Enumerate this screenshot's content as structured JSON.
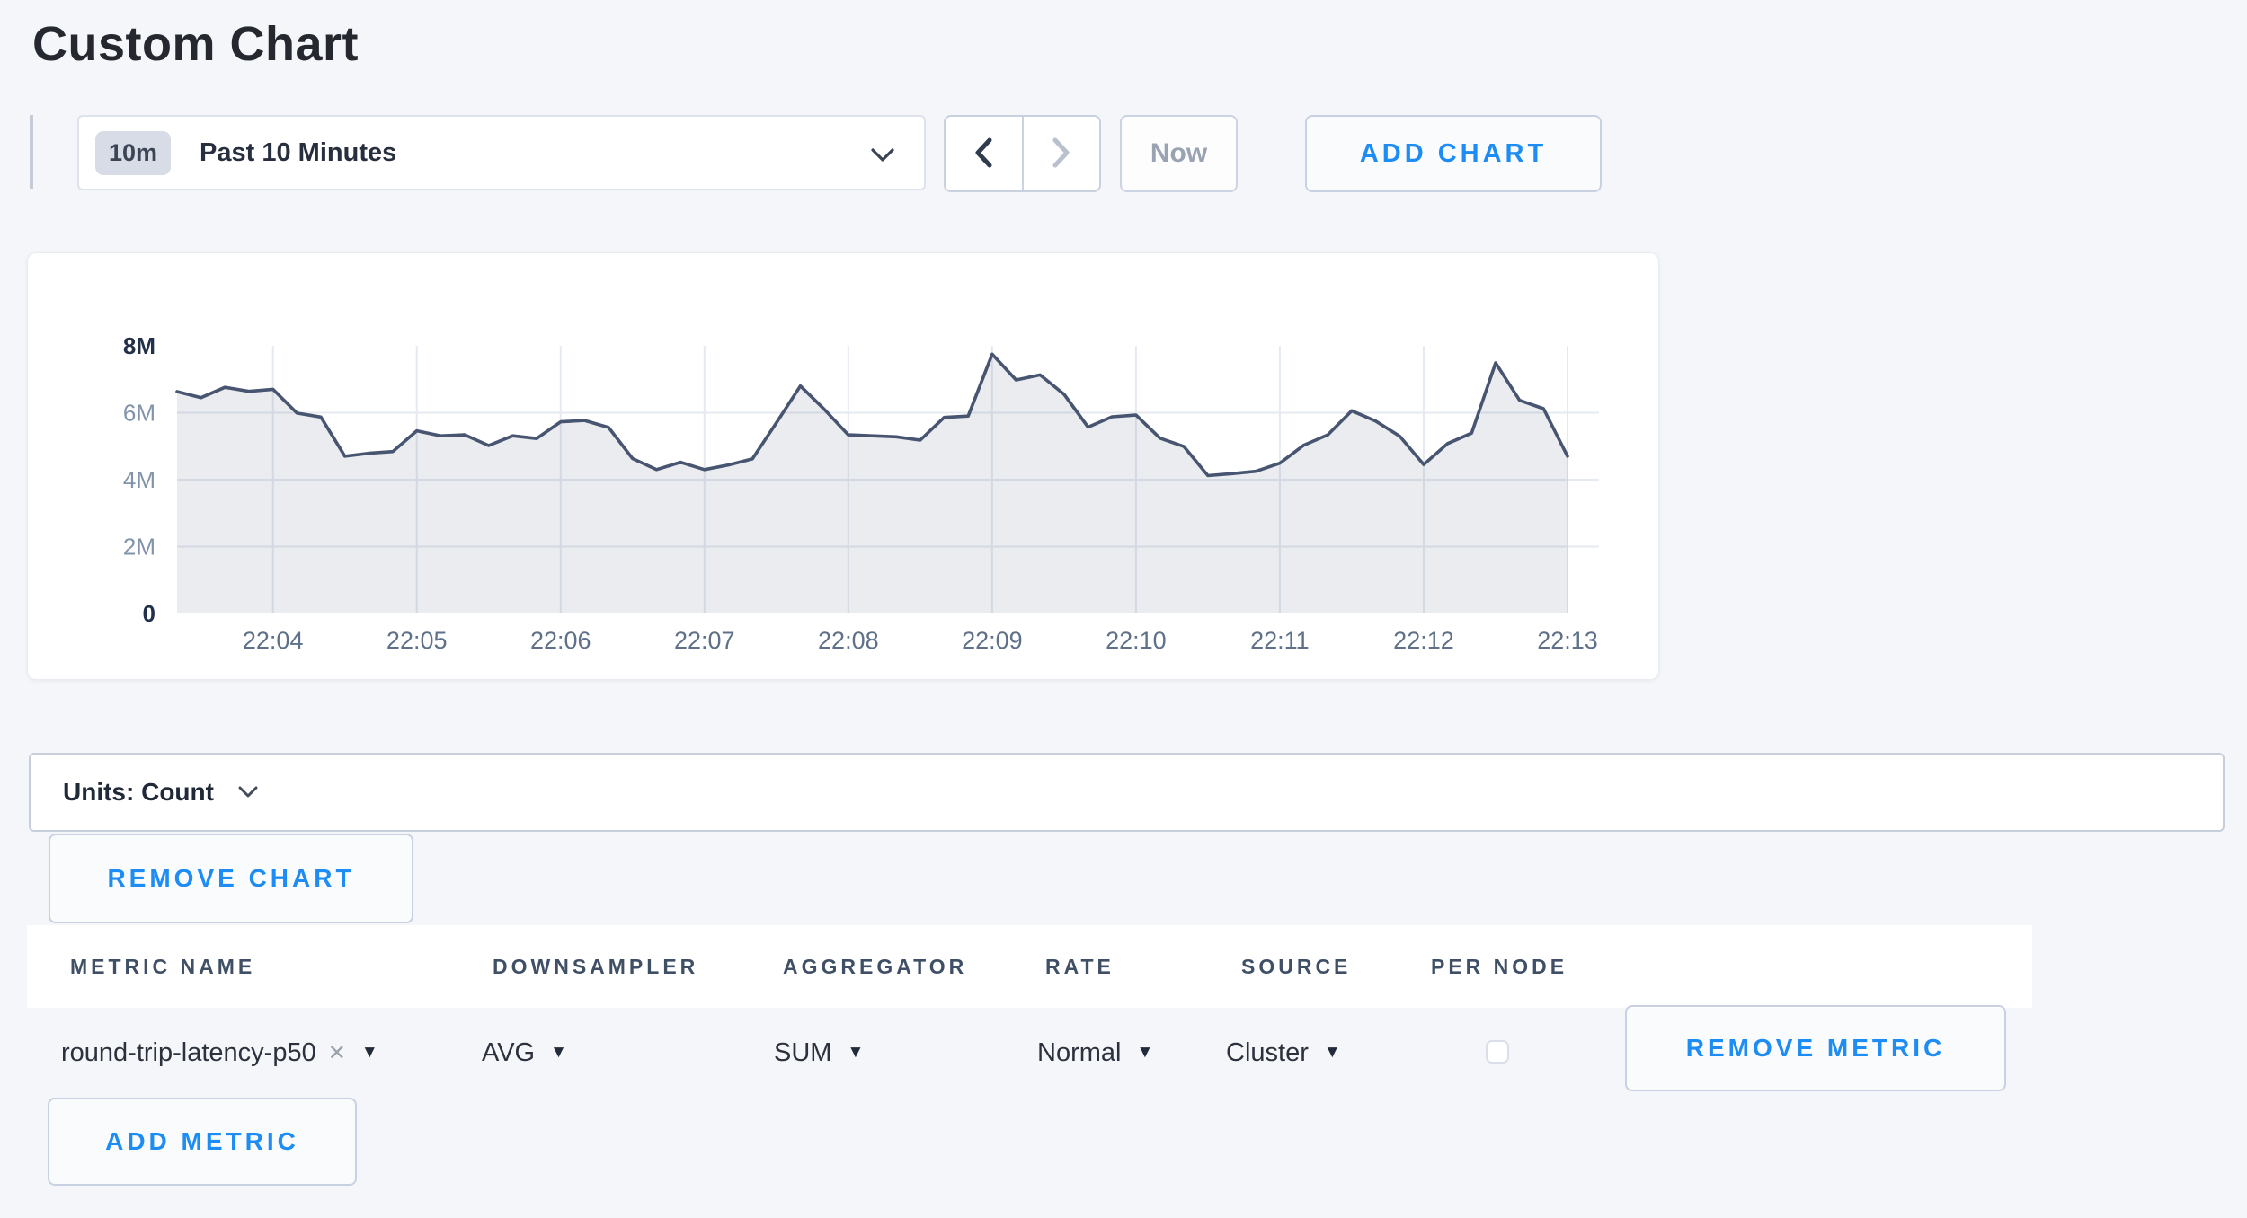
{
  "header": {
    "title": "Custom Chart"
  },
  "toolbar": {
    "range_badge": "10m",
    "range_label": "Past 10 Minutes",
    "now_label": "Now",
    "add_chart_label": "ADD CHART"
  },
  "units": {
    "label": "Units: Count"
  },
  "buttons": {
    "remove_chart": "REMOVE CHART",
    "remove_metric": "REMOVE METRIC",
    "add_metric": "ADD METRIC"
  },
  "icons": {
    "caret_down": "▼",
    "remove_x": "✕"
  },
  "table": {
    "columns": [
      "METRIC NAME",
      "DOWNSAMPLER",
      "AGGREGATOR",
      "RATE",
      "SOURCE",
      "PER NODE"
    ],
    "row": {
      "metric_name": "round-trip-latency-p50",
      "downsampler": "AVG",
      "aggregator": "SUM",
      "rate": "Normal",
      "source": "Cluster",
      "per_node_checked": false
    }
  },
  "colors": {
    "accent_blue": "#1d8cf4",
    "line": "#475571",
    "fill": "rgba(71,84,112,0.11)",
    "grid": "#e5eaf1"
  },
  "chart_data": {
    "type": "area",
    "title": "",
    "ylabel": "Count",
    "unit": "millions",
    "start_time": "22:03:20",
    "interval_seconds": 10,
    "ylim": [
      0,
      8
    ],
    "grid": true,
    "legend": "none",
    "values_millions": [
      6.63,
      6.45,
      6.76,
      6.64,
      6.7,
      5.99,
      5.87,
      4.7,
      4.79,
      4.84,
      5.46,
      5.31,
      5.34,
      5.02,
      5.31,
      5.23,
      5.73,
      5.77,
      5.56,
      4.63,
      4.3,
      4.52,
      4.3,
      4.44,
      4.62,
      5.7,
      6.8,
      6.1,
      5.34,
      5.31,
      5.28,
      5.18,
      5.86,
      5.9,
      7.75,
      6.98,
      7.13,
      6.55,
      5.57,
      5.88,
      5.93,
      5.24,
      4.99,
      4.12,
      4.18,
      4.25,
      4.49,
      5.03,
      5.34,
      6.06,
      5.75,
      5.3,
      4.45,
      5.08,
      5.39,
      7.49,
      6.37,
      6.12,
      4.7
    ],
    "x_ticks": [
      {
        "label": "22:04",
        "index": 4
      },
      {
        "label": "22:05",
        "index": 10
      },
      {
        "label": "22:06",
        "index": 16
      },
      {
        "label": "22:07",
        "index": 22
      },
      {
        "label": "22:08",
        "index": 28
      },
      {
        "label": "22:09",
        "index": 34
      },
      {
        "label": "22:10",
        "index": 40
      },
      {
        "label": "22:11",
        "index": 46
      },
      {
        "label": "22:12",
        "index": 52
      },
      {
        "label": "22:13",
        "index": 58
      }
    ],
    "y_ticks": [
      {
        "label": "0",
        "value": 0,
        "strong": true,
        "grid": false
      },
      {
        "label": "2M",
        "value": 2,
        "strong": false,
        "grid": true
      },
      {
        "label": "4M",
        "value": 4,
        "strong": false,
        "grid": true
      },
      {
        "label": "6M",
        "value": 6,
        "strong": false,
        "grid": true
      },
      {
        "label": "8M",
        "value": 8,
        "strong": true,
        "grid": false
      }
    ]
  }
}
